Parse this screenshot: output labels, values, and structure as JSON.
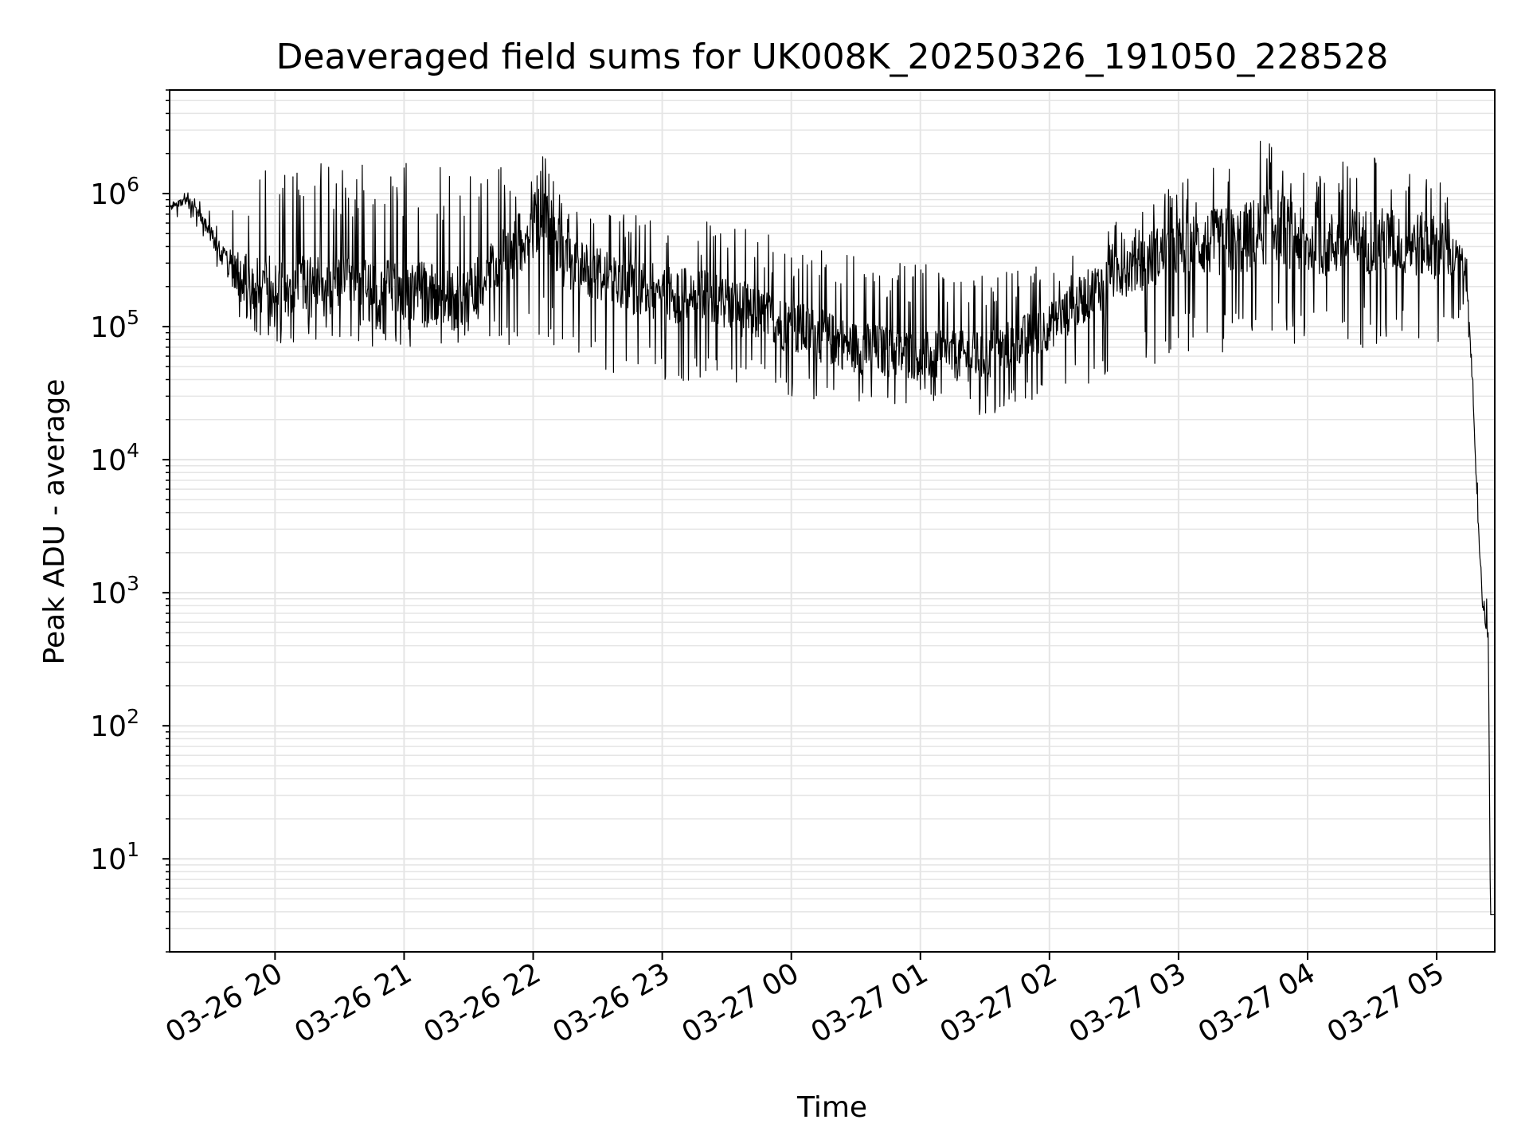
{
  "chart_data": {
    "type": "line",
    "title": "Deaveraged field sums for UK008K_20250326_191050_228528",
    "xlabel": "Time",
    "ylabel": "Peak ADU - average",
    "yscale": "log",
    "ylim": [
      2,
      6000000
    ],
    "xlim": [
      "03-26 19:11",
      "03-27 05:27"
    ],
    "grid": true,
    "line_color": "#000000",
    "grid_color": "#e5e5e5",
    "x_ticks": [
      {
        "t": "03-26 20:00",
        "label": "03-26 20"
      },
      {
        "t": "03-26 21:00",
        "label": "03-26 21"
      },
      {
        "t": "03-26 22:00",
        "label": "03-26 22"
      },
      {
        "t": "03-26 23:00",
        "label": "03-26 23"
      },
      {
        "t": "03-27 00:00",
        "label": "03-27 00"
      },
      {
        "t": "03-27 01:00",
        "label": "03-27 01"
      },
      {
        "t": "03-27 02:00",
        "label": "03-27 02"
      },
      {
        "t": "03-27 03:00",
        "label": "03-27 03"
      },
      {
        "t": "03-27 04:00",
        "label": "03-27 04"
      },
      {
        "t": "03-27 05:00",
        "label": "03-27 05"
      }
    ],
    "y_ticks": [
      {
        "value": 10,
        "base": "10",
        "exp": "1"
      },
      {
        "value": 100,
        "base": "10",
        "exp": "2"
      },
      {
        "value": 1000,
        "base": "10",
        "exp": "3"
      },
      {
        "value": 10000,
        "base": "10",
        "exp": "4"
      },
      {
        "value": 100000,
        "base": "10",
        "exp": "5"
      },
      {
        "value": 1000000,
        "base": "10",
        "exp": "6"
      }
    ],
    "series": [
      {
        "envelope": [
          {
            "t": "03-26 19:11",
            "low": 650000,
            "base": 800000,
            "high": 1000000
          },
          {
            "t": "03-26 19:20",
            "low": 700000,
            "base": 900000,
            "high": 1050000
          },
          {
            "t": "03-26 19:25",
            "low": 500000,
            "base": 700000,
            "high": 900000
          },
          {
            "t": "03-26 19:35",
            "low": 200000,
            "base": 350000,
            "high": 600000
          },
          {
            "t": "03-26 19:45",
            "low": 100000,
            "base": 220000,
            "high": 1600000
          },
          {
            "t": "03-26 20:00",
            "low": 75000,
            "base": 200000,
            "high": 1650000
          },
          {
            "t": "03-26 20:30",
            "low": 70000,
            "base": 200000,
            "high": 1700000
          },
          {
            "t": "03-26 21:00",
            "low": 68000,
            "base": 180000,
            "high": 1750000
          },
          {
            "t": "03-26 21:30",
            "low": 65000,
            "base": 160000,
            "high": 1600000
          },
          {
            "t": "03-26 21:45",
            "low": 70000,
            "base": 300000,
            "high": 1600000
          },
          {
            "t": "03-26 22:05",
            "low": 80000,
            "base": 700000,
            "high": 2000000
          },
          {
            "t": "03-26 22:15",
            "low": 50000,
            "base": 300000,
            "high": 800000
          },
          {
            "t": "03-26 22:45",
            "low": 40000,
            "base": 200000,
            "high": 700000
          },
          {
            "t": "03-26 23:30",
            "low": 35000,
            "base": 150000,
            "high": 600000
          },
          {
            "t": "03-27 00:00",
            "low": 30000,
            "base": 100000,
            "high": 450000
          },
          {
            "t": "03-27 00:30",
            "low": 25000,
            "base": 70000,
            "high": 350000
          },
          {
            "t": "03-27 01:00",
            "low": 25000,
            "base": 60000,
            "high": 300000
          },
          {
            "t": "03-27 01:30",
            "low": 20000,
            "base": 60000,
            "high": 250000
          },
          {
            "t": "03-27 02:00",
            "low": 30000,
            "base": 100000,
            "high": 300000
          },
          {
            "t": "03-27 02:30",
            "low": 40000,
            "base": 250000,
            "high": 600000
          },
          {
            "t": "03-27 03:00",
            "low": 60000,
            "base": 400000,
            "high": 1200000
          },
          {
            "t": "03-27 03:30",
            "low": 60000,
            "base": 450000,
            "high": 2200000
          },
          {
            "t": "03-27 03:45",
            "low": 70000,
            "base": 600000,
            "high": 2900000
          },
          {
            "t": "03-27 04:00",
            "low": 60000,
            "base": 400000,
            "high": 1500000
          },
          {
            "t": "03-27 04:30",
            "low": 70000,
            "base": 450000,
            "high": 2000000
          },
          {
            "t": "03-27 05:00",
            "low": 60000,
            "base": 400000,
            "high": 1500000
          },
          {
            "t": "03-27 05:12",
            "low": 120000,
            "base": 300000,
            "high": 600000
          },
          {
            "t": "03-27 05:15",
            "low": 80000,
            "base": 150000,
            "high": 250000
          },
          {
            "t": "03-27 05:18",
            "low": 8000,
            "base": 10000,
            "high": 12000
          },
          {
            "t": "03-27 05:21",
            "low": 800,
            "base": 1000,
            "high": 2500
          },
          {
            "t": "03-27 05:24",
            "low": 400,
            "base": 450,
            "high": 700
          },
          {
            "t": "03-27 05:25",
            "low": 3.8,
            "base": 3.8,
            "high": 3.8
          },
          {
            "t": "03-27 05:27",
            "low": 3.8,
            "base": 3.8,
            "high": 3.8
          }
        ]
      }
    ]
  }
}
